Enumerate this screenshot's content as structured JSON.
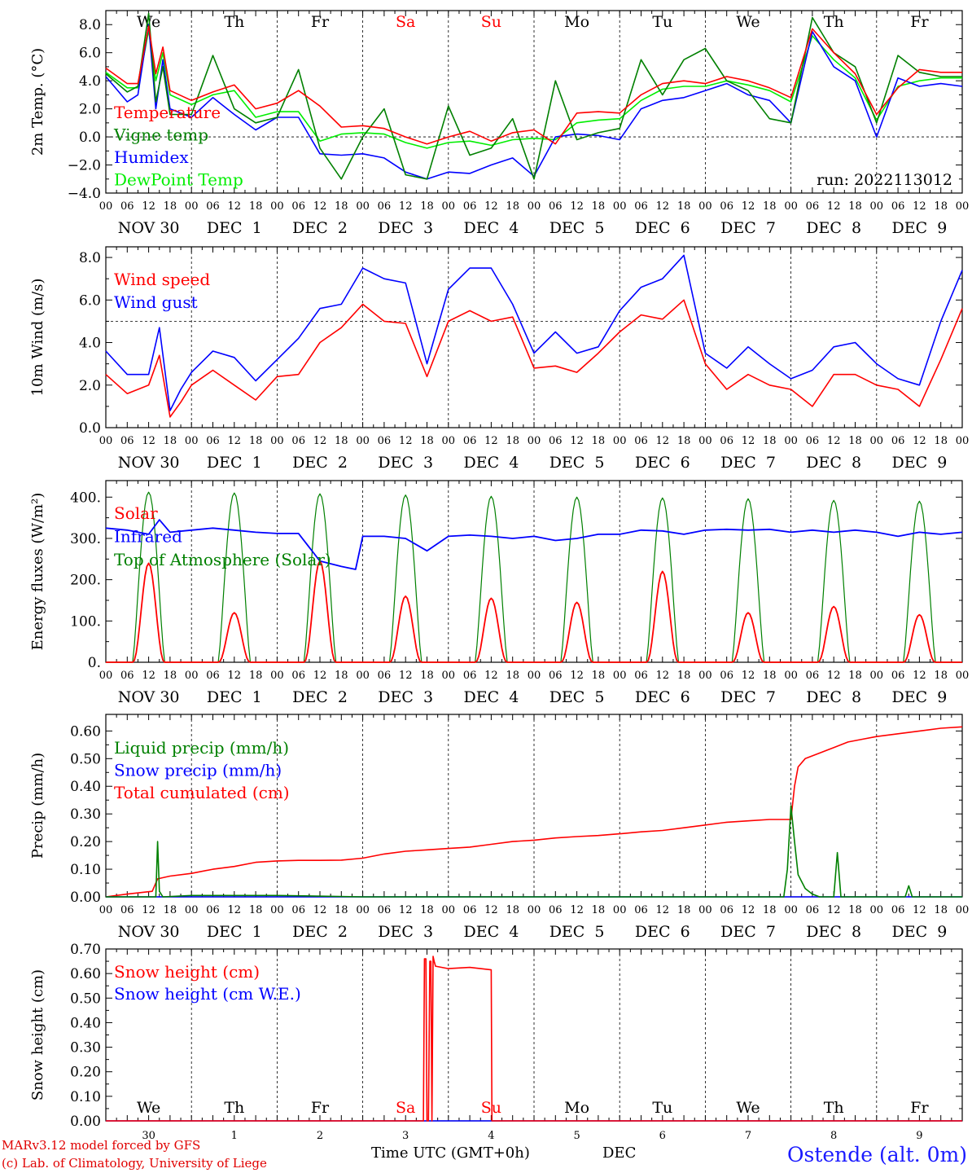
{
  "run_label": "run: 2022113012",
  "footer": {
    "model": "MARv3.12 model forced by GFS",
    "copyright": "(c) Lab. of Climatology, University of Liege",
    "time_axis": "Time UTC (GMT+0h)",
    "month": "DEC",
    "station": "Ostende (alt. 0m)"
  },
  "days": [
    {
      "abbr": "We",
      "date": "NOV 30",
      "num": "30",
      "weekend": false
    },
    {
      "abbr": "Th",
      "date": "DEC  1",
      "num": "1",
      "weekend": false
    },
    {
      "abbr": "Fr",
      "date": "DEC  2",
      "num": "2",
      "weekend": false
    },
    {
      "abbr": "Sa",
      "date": "DEC  3",
      "num": "3",
      "weekend": true
    },
    {
      "abbr": "Su",
      "date": "DEC  4",
      "num": "4",
      "weekend": true
    },
    {
      "abbr": "Mo",
      "date": "DEC  5",
      "num": "5",
      "weekend": false
    },
    {
      "abbr": "Tu",
      "date": "DEC  6",
      "num": "6",
      "weekend": false
    },
    {
      "abbr": "We",
      "date": "DEC  7",
      "num": "7",
      "weekend": false
    },
    {
      "abbr": "Th",
      "date": "DEC  8",
      "num": "8",
      "weekend": false
    },
    {
      "abbr": "Fr",
      "date": "DEC  9",
      "num": "9",
      "weekend": false
    }
  ],
  "hour_ticks": [
    "00",
    "06",
    "12",
    "18"
  ],
  "colors": {
    "red": "#ff0000",
    "green": "#008000",
    "blue": "#0000ff",
    "lightgreen": "#00ee00",
    "weekend": "#ff0000"
  },
  "chart_data": [
    {
      "type": "line",
      "ylabel": "2m Temp. (°C)",
      "ylim": [
        -4,
        9
      ],
      "yticks": [
        "8.0",
        "6.0",
        "4.0",
        "2.0",
        "0.0",
        "−2.0",
        "−4.0"
      ],
      "ytick_values": [
        8,
        6,
        4,
        2,
        0,
        -2,
        -4
      ],
      "reference_line": 0,
      "x_unit": "hours from 2022-11-30 00 UTC",
      "series": [
        {
          "name": "Temperature",
          "color": "#ff0000",
          "x": [
            0,
            6,
            9,
            12,
            14,
            16,
            18,
            24,
            30,
            36,
            42,
            48,
            54,
            60,
            66,
            72,
            78,
            84,
            90,
            96,
            102,
            108,
            114,
            120,
            126,
            132,
            138,
            144,
            150,
            156,
            162,
            168,
            174,
            180,
            186,
            192,
            198,
            204,
            210,
            216,
            222,
            228,
            234,
            240
          ],
          "y": [
            4.9,
            3.8,
            3.8,
            7.9,
            4.5,
            6.4,
            3.3,
            2.6,
            3.2,
            3.7,
            2.0,
            2.4,
            3.3,
            2.2,
            0.7,
            0.8,
            0.6,
            0.0,
            -0.5,
            0.0,
            0.4,
            -0.3,
            0.3,
            0.5,
            -0.5,
            1.7,
            1.8,
            1.7,
            3.0,
            3.8,
            4.0,
            3.8,
            4.3,
            4.0,
            3.5,
            2.8,
            7.7,
            6.0,
            4.5,
            1.6,
            3.5,
            4.8,
            4.6,
            4.6
          ]
        },
        {
          "name": "Vigne temp",
          "color": "#008000",
          "x": [
            0,
            6,
            9,
            12,
            14,
            16,
            18,
            24,
            30,
            36,
            42,
            48,
            54,
            60,
            66,
            72,
            78,
            84,
            90,
            96,
            102,
            108,
            114,
            120,
            126,
            132,
            138,
            144,
            150,
            156,
            162,
            168,
            174,
            180,
            186,
            192,
            198,
            204,
            210,
            216,
            222,
            228,
            234,
            240
          ],
          "y": [
            4.5,
            3.2,
            3.6,
            8.8,
            2.5,
            5.0,
            1.6,
            1.6,
            5.8,
            2.0,
            1.0,
            1.4,
            4.8,
            -0.8,
            -3.0,
            0.0,
            2.0,
            -2.7,
            -3.0,
            2.2,
            -1.3,
            -0.8,
            1.3,
            -3.0,
            4.0,
            -0.2,
            0.3,
            0.6,
            5.5,
            3.0,
            5.5,
            6.3,
            4.0,
            3.3,
            1.3,
            1.0,
            8.5,
            6.0,
            5.0,
            1.0,
            5.8,
            4.6,
            4.3,
            4.3
          ]
        },
        {
          "name": "Humidex",
          "color": "#0000ff",
          "x": [
            0,
            6,
            9,
            12,
            14,
            16,
            18,
            24,
            30,
            36,
            42,
            48,
            54,
            60,
            66,
            72,
            78,
            84,
            90,
            96,
            102,
            108,
            114,
            120,
            126,
            132,
            138,
            144,
            150,
            156,
            162,
            168,
            174,
            180,
            186,
            192,
            198,
            204,
            210,
            216,
            222,
            228,
            234,
            240
          ],
          "y": [
            4.3,
            2.5,
            3.0,
            8.0,
            2.0,
            5.5,
            2.0,
            1.4,
            2.8,
            1.6,
            0.5,
            1.4,
            1.4,
            -1.2,
            -1.3,
            -1.2,
            -1.5,
            -2.5,
            -3.0,
            -2.5,
            -2.6,
            -2.0,
            -1.5,
            -2.8,
            0.0,
            0.2,
            0.1,
            -0.2,
            2.0,
            2.6,
            2.8,
            3.3,
            3.8,
            3.0,
            2.6,
            1.0,
            7.5,
            5.0,
            4.0,
            0.0,
            4.2,
            3.6,
            3.8,
            3.6
          ]
        },
        {
          "name": "DewPoint Temp",
          "color": "#00ee00",
          "x": [
            0,
            6,
            9,
            12,
            14,
            16,
            18,
            24,
            30,
            36,
            42,
            48,
            54,
            60,
            66,
            72,
            78,
            84,
            90,
            96,
            102,
            108,
            114,
            120,
            126,
            132,
            138,
            144,
            150,
            156,
            162,
            168,
            174,
            180,
            186,
            192,
            198,
            204,
            210,
            216,
            222,
            228,
            234,
            240
          ],
          "y": [
            4.6,
            3.5,
            3.5,
            7.6,
            4.0,
            6.0,
            3.0,
            2.3,
            3.0,
            3.3,
            1.4,
            1.8,
            1.8,
            -0.3,
            0.2,
            0.3,
            0.2,
            -0.4,
            -0.8,
            -0.4,
            -0.3,
            -0.6,
            -0.2,
            -0.1,
            -0.2,
            1.0,
            1.2,
            1.3,
            2.6,
            3.4,
            3.6,
            3.6,
            4.0,
            3.7,
            3.3,
            2.5,
            7.2,
            5.5,
            4.2,
            1.2,
            3.6,
            4.0,
            4.2,
            4.2
          ]
        }
      ]
    },
    {
      "type": "line",
      "ylabel": "10m Wind (m/s)",
      "ylim": [
        0,
        8.5
      ],
      "yticks": [
        "8.0",
        "6.0",
        "4.0",
        "2.0",
        "0.0"
      ],
      "ytick_values": [
        8,
        6,
        4,
        2,
        0
      ],
      "reference_line": 5,
      "x_unit": "hours from 2022-11-30 00 UTC",
      "series": [
        {
          "name": "Wind speed",
          "color": "#ff0000",
          "x": [
            0,
            6,
            12,
            15,
            18,
            21,
            24,
            30,
            36,
            42,
            48,
            54,
            60,
            66,
            72,
            78,
            84,
            90,
            96,
            102,
            108,
            114,
            120,
            126,
            132,
            138,
            144,
            150,
            156,
            162,
            168,
            174,
            180,
            186,
            192,
            198,
            204,
            210,
            216,
            222,
            228,
            234,
            240
          ],
          "y": [
            2.5,
            1.6,
            2.0,
            3.4,
            0.5,
            1.2,
            2.0,
            2.7,
            2.0,
            1.3,
            2.4,
            2.5,
            4.0,
            4.7,
            5.8,
            5.0,
            4.9,
            2.4,
            5.0,
            5.5,
            5.0,
            5.2,
            2.8,
            2.9,
            2.6,
            3.5,
            4.5,
            5.3,
            5.1,
            6.0,
            3.0,
            1.8,
            2.5,
            2.0,
            1.8,
            1.0,
            2.5,
            2.5,
            2.0,
            1.8,
            1.0,
            3.2,
            5.6
          ]
        },
        {
          "name": "Wind gust",
          "color": "#0000ff",
          "x": [
            0,
            6,
            12,
            15,
            18,
            21,
            24,
            30,
            36,
            42,
            48,
            54,
            60,
            66,
            72,
            78,
            84,
            90,
            96,
            102,
            108,
            114,
            120,
            126,
            132,
            138,
            144,
            150,
            156,
            162,
            168,
            174,
            180,
            186,
            192,
            198,
            204,
            210,
            216,
            222,
            228,
            234,
            240
          ],
          "y": [
            3.6,
            2.5,
            2.5,
            4.7,
            0.8,
            1.8,
            2.6,
            3.6,
            3.3,
            2.2,
            3.2,
            4.2,
            5.6,
            5.8,
            7.5,
            7.0,
            6.8,
            3.0,
            6.5,
            7.5,
            7.5,
            5.8,
            3.5,
            4.5,
            3.5,
            3.8,
            5.5,
            6.6,
            7.0,
            8.1,
            3.5,
            2.8,
            3.8,
            3.0,
            2.3,
            2.7,
            3.8,
            4.0,
            3.0,
            2.3,
            2.0,
            5.0,
            7.4
          ]
        }
      ]
    },
    {
      "type": "line",
      "ylabel": "Energy fluxes (W/m²)",
      "ylim": [
        0,
        440
      ],
      "yticks": [
        "400.",
        "300.",
        "200.",
        "100.",
        "0."
      ],
      "ytick_values": [
        400,
        300,
        200,
        100,
        0
      ],
      "x_unit": "hours from 2022-11-30 00 UTC",
      "daily_peaks": {
        "top_of_atmosphere_solar": [
          412,
          410,
          408,
          405,
          402,
          400,
          398,
          396,
          392,
          390
        ],
        "solar": [
          240,
          120,
          245,
          160,
          155,
          145,
          220,
          120,
          135,
          115
        ]
      },
      "series": [
        {
          "name": "Solar",
          "color": "#ff0000",
          "x": [],
          "y": []
        },
        {
          "name": "Infrared",
          "color": "#0000ff",
          "x": [
            0,
            6,
            12,
            15,
            18,
            24,
            30,
            36,
            42,
            48,
            54,
            60,
            66,
            70,
            72,
            78,
            84,
            90,
            96,
            102,
            108,
            114,
            120,
            126,
            132,
            138,
            144,
            150,
            156,
            162,
            168,
            174,
            180,
            186,
            192,
            198,
            204,
            210,
            216,
            222,
            228,
            234,
            240
          ],
          "y": [
            325,
            320,
            310,
            345,
            315,
            320,
            325,
            320,
            315,
            312,
            312,
            245,
            232,
            225,
            305,
            305,
            300,
            270,
            305,
            308,
            305,
            300,
            305,
            295,
            300,
            310,
            310,
            320,
            318,
            310,
            320,
            322,
            320,
            322,
            315,
            320,
            315,
            320,
            315,
            305,
            315,
            310,
            315
          ]
        },
        {
          "name": "Top of Atmosphere (Solar)",
          "color": "#008000",
          "x": [],
          "y": []
        }
      ]
    },
    {
      "type": "line",
      "ylabel": "Precip (mm/h)",
      "ylim": [
        0,
        0.66
      ],
      "yticks": [
        "0.60",
        "0.50",
        "0.40",
        "0.30",
        "0.20",
        "0.10",
        "0.00"
      ],
      "ytick_values": [
        0.6,
        0.5,
        0.4,
        0.3,
        0.2,
        0.1,
        0.0
      ],
      "x_unit": "hours from 2022-11-30 00 UTC",
      "series": [
        {
          "name": "Liquid precip (mm/h)",
          "color": "#008000",
          "x": [
            0,
            14,
            14.5,
            15,
            16,
            24,
            48,
            72,
            96,
            120,
            144,
            168,
            190,
            191,
            192,
            193,
            194,
            196,
            198,
            200,
            204,
            205,
            206,
            208,
            216,
            224,
            225,
            226,
            230,
            240
          ],
          "y": [
            0,
            0,
            0.2,
            0.02,
            0,
            0.005,
            0.005,
            0,
            0,
            0,
            0,
            0,
            0,
            0.1,
            0.33,
            0.2,
            0.08,
            0.03,
            0.01,
            0,
            0,
            0.16,
            0,
            0,
            0,
            0,
            0.04,
            0,
            0,
            0
          ]
        },
        {
          "name": "Snow precip (mm/h)",
          "color": "#0000ff",
          "x": [
            0,
            240
          ],
          "y": [
            0,
            0
          ]
        },
        {
          "name": "Total cumulated (cm)",
          "color": "#ff0000",
          "x": [
            0,
            6,
            13,
            14.5,
            18,
            24,
            30,
            36,
            42,
            48,
            54,
            60,
            66,
            72,
            78,
            84,
            90,
            96,
            102,
            108,
            114,
            120,
            126,
            132,
            138,
            144,
            150,
            156,
            162,
            168,
            174,
            180,
            186,
            192,
            193,
            194,
            196,
            200,
            204,
            208,
            212,
            216,
            222,
            228,
            234,
            240
          ],
          "y": [
            0,
            0.01,
            0.02,
            0.065,
            0.075,
            0.085,
            0.1,
            0.11,
            0.125,
            0.13,
            0.132,
            0.132,
            0.133,
            0.14,
            0.155,
            0.165,
            0.17,
            0.175,
            0.18,
            0.19,
            0.2,
            0.205,
            0.213,
            0.218,
            0.222,
            0.228,
            0.235,
            0.24,
            0.25,
            0.26,
            0.27,
            0.275,
            0.28,
            0.28,
            0.4,
            0.47,
            0.5,
            0.52,
            0.54,
            0.56,
            0.57,
            0.58,
            0.59,
            0.6,
            0.61,
            0.615
          ]
        }
      ]
    },
    {
      "type": "line",
      "ylabel": "Snow height (cm)",
      "ylim": [
        0,
        0.7
      ],
      "yticks": [
        "0.70",
        "0.60",
        "0.50",
        "0.40",
        "0.30",
        "0.20",
        "0.10",
        "0.00"
      ],
      "ytick_values": [
        0.7,
        0.6,
        0.5,
        0.4,
        0.3,
        0.2,
        0.1,
        0.0
      ],
      "x_unit": "hours from 2022-11-30 00 UTC",
      "series": [
        {
          "name": "Snow height (cm)",
          "color": "#ff0000",
          "x": [
            0,
            89,
            89.3,
            89.7,
            90,
            90.4,
            90.8,
            91.1,
            91.4,
            91.7,
            92,
            92.4,
            96,
            102,
            108,
            108.2,
            240
          ],
          "y": [
            0,
            0,
            0.66,
            0.66,
            0,
            0,
            0.65,
            0.65,
            0,
            0.67,
            0.65,
            0.63,
            0.62,
            0.625,
            0.615,
            0,
            0
          ]
        },
        {
          "name": "Snow height (cm W.E.)",
          "color": "#0000ff",
          "x": [
            0,
            240
          ],
          "y": [
            0,
            0
          ]
        }
      ]
    }
  ]
}
